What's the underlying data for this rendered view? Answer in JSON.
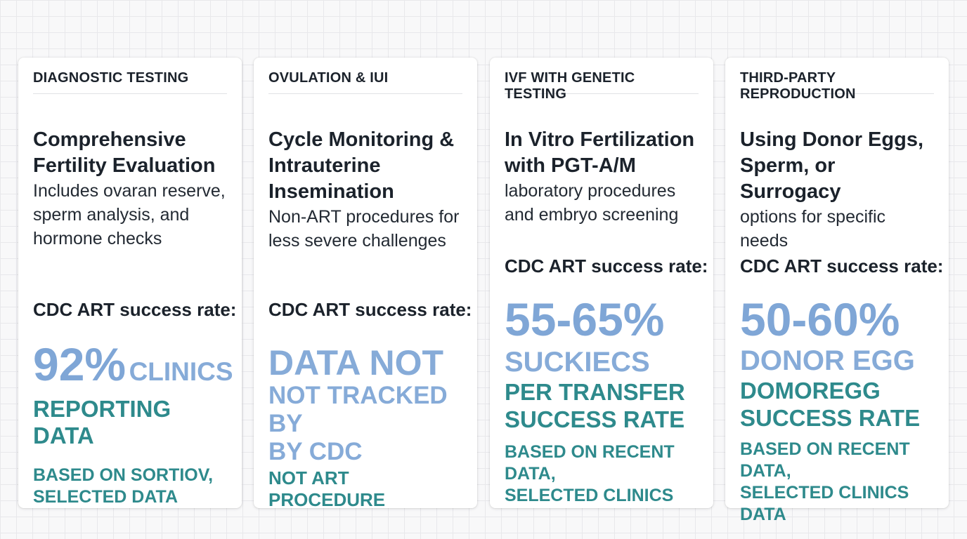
{
  "cards": [
    {
      "header": "DIAGNOSTIC TESTING",
      "title": [
        "Comprehensive",
        "Fertility Evaluation"
      ],
      "description": [
        "Includes ovaran reserve,",
        "sperm analysis, and",
        "hormone checks"
      ],
      "rate_label": "CDC ART success rate:",
      "big_value": "92%",
      "big_suffix": "CLINICS",
      "line1": "REPORTING DATA",
      "note": [
        "BASED ON SORTIOV,",
        "SELECTED DATA"
      ]
    },
    {
      "header": "OVULATION & IUI",
      "title": [
        "Cycle Monitoring &",
        "Intrauterine",
        "Insemination"
      ],
      "description": [
        "Non-ART procedures for",
        "less severe challenges"
      ],
      "rate_label": "CDC ART success rate:",
      "big_value": "DATA NOT",
      "line1": "NOT TRACKED BY",
      "line2": "BY CDC",
      "note": [
        "NOT ART PROCEDURE"
      ]
    },
    {
      "header": "IVF WITH GENETIC TESTING",
      "title": [
        "In Vitro Fertilization",
        "with PGT-A/M"
      ],
      "description": [
        "laboratory procedures",
        "and embryo screening"
      ],
      "rate_label": "CDC ART success rate:",
      "big_value": "55-65%",
      "line1": "SUCKIECS",
      "teal_lines": [
        "PER TRANSFER",
        "SUCCESS RATE"
      ],
      "note": [
        "BASED ON RECENT DATA,",
        "SELECTED CLINICS"
      ]
    },
    {
      "header": "THIRD-PARTY REPRODUCTION",
      "title": [
        "Using Donor Eggs,",
        "Sperm, or Surrogacy"
      ],
      "description": [
        "options for specific",
        "needs"
      ],
      "rate_label": "CDC ART success rate:",
      "big_value": "50-60%",
      "line1": "DONOR EGG",
      "teal_lines": [
        "DOMOREGG",
        "SUCCESS RATE"
      ],
      "note": [
        "BASED ON RECENT DATA,",
        "SELECTED CLINICS",
        "DATA"
      ]
    }
  ]
}
